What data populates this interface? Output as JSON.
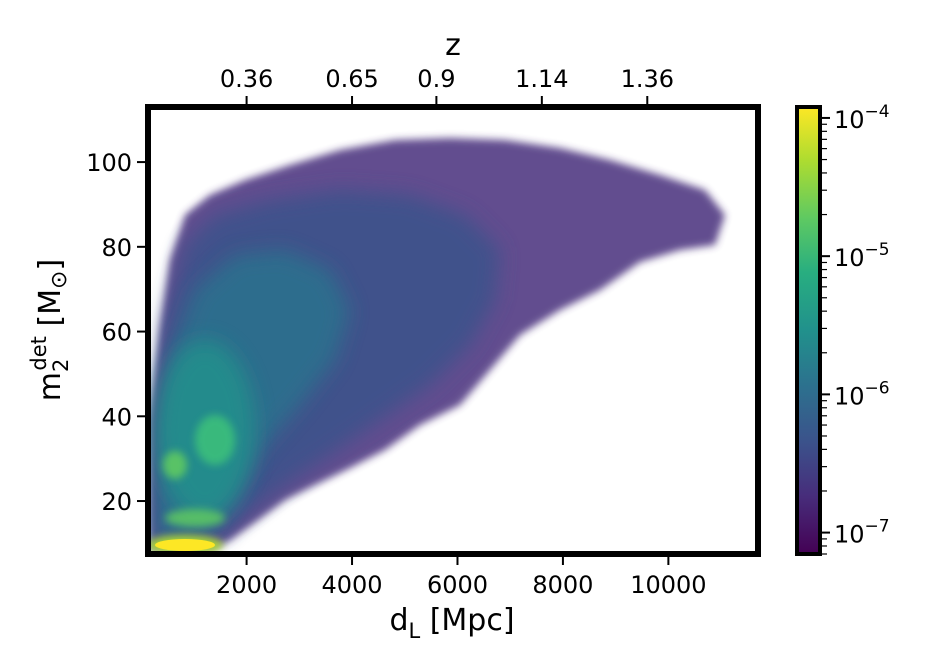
{
  "chart_data": {
    "type": "heatmap",
    "title": "",
    "xlabel": "d_L [Mpc]",
    "xlabel_main": "d",
    "xlabel_sub": "L",
    "xlabel_rest": " [Mpc]",
    "ylabel_main": "m",
    "ylabel_sub": "2",
    "ylabel_sup": "det",
    "ylabel_rest": " [M",
    "ylabel_sun": "⊙",
    "ylabel_close": "]",
    "top_axis_label": "z",
    "xlim": [
      130,
      11700
    ],
    "ylim": [
      7.5,
      113
    ],
    "x_ticks": [
      2000,
      4000,
      6000,
      8000,
      10000
    ],
    "x_tick_labels": [
      "2000",
      "4000",
      "6000",
      "8000",
      "10000"
    ],
    "y_ticks": [
      20,
      40,
      60,
      80,
      100
    ],
    "y_tick_labels": [
      "20",
      "40",
      "60",
      "80",
      "100"
    ],
    "top_ticks": [
      {
        "d_L": 2000,
        "label": "0.36"
      },
      {
        "d_L": 4000,
        "label": "0.65"
      },
      {
        "d_L": 5600,
        "label": "0.9"
      },
      {
        "d_L": 7600,
        "label": "1.14"
      },
      {
        "d_L": 9600,
        "label": "1.36"
      }
    ],
    "colorbar": {
      "scale": "log",
      "range": [
        7e-08,
        0.00012
      ],
      "colormap": "viridis",
      "ticks": [
        {
          "value": 1e-07,
          "label": "10",
          "exp": "−7"
        },
        {
          "value": 1e-06,
          "label": "10",
          "exp": "−6"
        },
        {
          "value": 1e-05,
          "label": "10",
          "exp": "−5"
        },
        {
          "value": 0.0001,
          "label": "10",
          "exp": "−4"
        }
      ]
    },
    "density_features": [
      {
        "d_L": 800,
        "m2": 10,
        "level": "peak ~1e-4"
      },
      {
        "d_L": 650,
        "m2": 29,
        "level": "~2e-5"
      },
      {
        "d_L": 1500,
        "m2": 36,
        "level": "~2e-5"
      },
      {
        "d_L": 1200,
        "m2": 16,
        "level": "~2e-5"
      },
      {
        "d_L": 2500,
        "m2": 50,
        "level": "~3e-6"
      },
      {
        "d_L": 5000,
        "m2": 65,
        "level": "~5e-7"
      },
      {
        "d_L": 8500,
        "m2": 80,
        "level": "~1e-7"
      }
    ],
    "grid": false
  }
}
